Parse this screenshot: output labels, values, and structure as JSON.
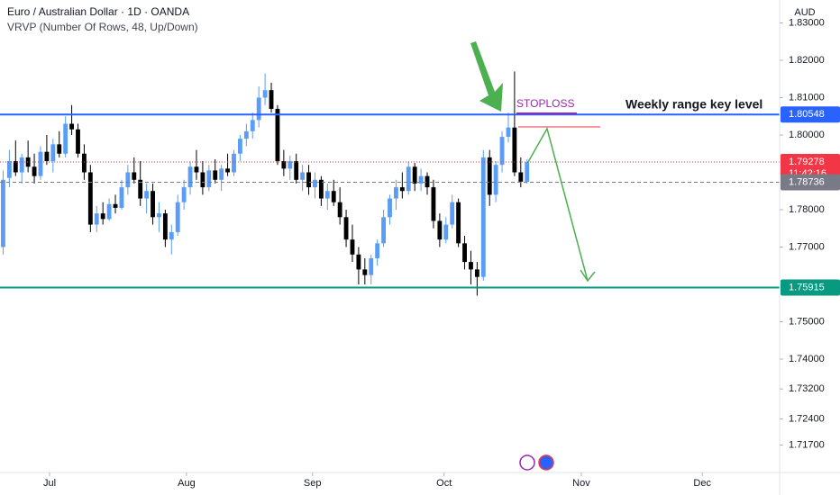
{
  "chart_data": {
    "type": "candlestick",
    "title": "Euro / Australian Dollar · 1D · OANDA",
    "subtitle": "VRVP (Number Of Rows, 48, Up/Down)",
    "currency": "AUD",
    "up_color": "#5b9cf6",
    "down_color": "#000000",
    "ylim": [
      1.70964,
      1.83614
    ],
    "yticks": [
      {
        "value": 1.83,
        "label": "1.83000"
      },
      {
        "value": 1.82,
        "label": "1.82000"
      },
      {
        "value": 1.81,
        "label": "1.81000"
      },
      {
        "value": 1.8,
        "label": "1.80000"
      },
      {
        "value": 1.78,
        "label": "1.78000"
      },
      {
        "value": 1.77,
        "label": "1.77000"
      },
      {
        "value": 1.75,
        "label": "1.75000"
      },
      {
        "value": 1.74,
        "label": "1.74000"
      },
      {
        "value": 1.732,
        "label": "1.73200"
      },
      {
        "value": 1.724,
        "label": "1.72400"
      },
      {
        "value": 1.717,
        "label": "1.71700"
      }
    ],
    "xlim": [
      -0.5,
      124.5
    ],
    "xticks": [
      {
        "value": 7.45,
        "label": "Jul"
      },
      {
        "value": 29.4,
        "label": "Aug"
      },
      {
        "value": 49.6,
        "label": "Sep"
      },
      {
        "value": 70.7,
        "label": "Oct"
      },
      {
        "value": 92.7,
        "label": "Nov"
      },
      {
        "value": 112.1,
        "label": "Dec"
      }
    ],
    "grid": false,
    "candles": [
      [
        1.77,
        1.7905,
        1.768,
        1.788
      ],
      [
        1.7885,
        1.796,
        1.786,
        1.793
      ],
      [
        1.793,
        1.7985,
        1.789,
        1.79
      ],
      [
        1.79,
        1.795,
        1.787,
        1.794
      ],
      [
        1.794,
        1.7985,
        1.79,
        1.7915
      ],
      [
        1.7915,
        1.795,
        1.787,
        1.789
      ],
      [
        1.789,
        1.797,
        1.788,
        1.7955
      ],
      [
        1.7955,
        1.8,
        1.792,
        1.793
      ],
      [
        1.793,
        1.799,
        1.79,
        1.7975
      ],
      [
        1.7975,
        1.801,
        1.794,
        1.795
      ],
      [
        1.795,
        1.805,
        1.794,
        1.803
      ],
      [
        1.803,
        1.808,
        1.8,
        1.8015
      ],
      [
        1.8015,
        1.803,
        1.794,
        1.795
      ],
      [
        1.795,
        1.7975,
        1.788,
        1.79
      ],
      [
        1.79,
        1.792,
        1.774,
        1.776
      ],
      [
        1.776,
        1.781,
        1.774,
        1.779
      ],
      [
        1.779,
        1.782,
        1.776,
        1.7775
      ],
      [
        1.7775,
        1.783,
        1.777,
        1.7815
      ],
      [
        1.7815,
        1.784,
        1.779,
        1.7805
      ],
      [
        1.7805,
        1.788,
        1.78,
        1.786
      ],
      [
        1.786,
        1.792,
        1.784,
        1.79
      ],
      [
        1.79,
        1.794,
        1.787,
        1.788
      ],
      [
        1.788,
        1.793,
        1.781,
        1.783
      ],
      [
        1.783,
        1.787,
        1.779,
        1.785
      ],
      [
        1.785,
        1.787,
        1.776,
        1.778
      ],
      [
        1.778,
        1.782,
        1.774,
        1.779
      ],
      [
        1.779,
        1.78,
        1.77,
        1.772
      ],
      [
        1.772,
        1.776,
        1.768,
        1.774
      ],
      [
        1.774,
        1.784,
        1.773,
        1.782
      ],
      [
        1.782,
        1.788,
        1.78,
        1.786
      ],
      [
        1.786,
        1.793,
        1.784,
        1.7915
      ],
      [
        1.7915,
        1.796,
        1.788,
        1.79
      ],
      [
        1.79,
        1.793,
        1.784,
        1.786
      ],
      [
        1.786,
        1.792,
        1.785,
        1.7905
      ],
      [
        1.7905,
        1.7935,
        1.787,
        1.788
      ],
      [
        1.788,
        1.792,
        1.785,
        1.791
      ],
      [
        1.791,
        1.795,
        1.789,
        1.79
      ],
      [
        1.79,
        1.796,
        1.789,
        1.795
      ],
      [
        1.795,
        1.8,
        1.793,
        1.799
      ],
      [
        1.799,
        1.803,
        1.797,
        1.801
      ],
      [
        1.801,
        1.806,
        1.799,
        1.804
      ],
      [
        1.804,
        1.813,
        1.802,
        1.81
      ],
      [
        1.81,
        1.8165,
        1.808,
        1.812
      ],
      [
        1.812,
        1.814,
        1.806,
        1.807
      ],
      [
        1.807,
        1.808,
        1.792,
        1.793
      ],
      [
        1.793,
        1.796,
        1.789,
        1.791
      ],
      [
        1.791,
        1.7945,
        1.788,
        1.793
      ],
      [
        1.793,
        1.795,
        1.787,
        1.788
      ],
      [
        1.788,
        1.792,
        1.785,
        1.79
      ],
      [
        1.79,
        1.792,
        1.784,
        1.786
      ],
      [
        1.786,
        1.79,
        1.783,
        1.788
      ],
      [
        1.788,
        1.789,
        1.781,
        1.783
      ],
      [
        1.783,
        1.787,
        1.78,
        1.785
      ],
      [
        1.785,
        1.788,
        1.781,
        1.782
      ],
      [
        1.782,
        1.786,
        1.776,
        1.778
      ],
      [
        1.778,
        1.78,
        1.77,
        1.772
      ],
      [
        1.772,
        1.776,
        1.766,
        1.768
      ],
      [
        1.768,
        1.77,
        1.76,
        1.764
      ],
      [
        1.764,
        1.767,
        1.76,
        1.7625
      ],
      [
        1.7625,
        1.768,
        1.76,
        1.767
      ],
      [
        1.767,
        1.772,
        1.765,
        1.771
      ],
      [
        1.771,
        1.78,
        1.77,
        1.778
      ],
      [
        1.778,
        1.784,
        1.776,
        1.783
      ],
      [
        1.783,
        1.788,
        1.78,
        1.786
      ],
      [
        1.786,
        1.79,
        1.783,
        1.785
      ],
      [
        1.785,
        1.793,
        1.784,
        1.7915
      ],
      [
        1.7915,
        1.7925,
        1.785,
        1.787
      ],
      [
        1.787,
        1.791,
        1.785,
        1.789
      ],
      [
        1.789,
        1.79,
        1.784,
        1.786
      ],
      [
        1.786,
        1.788,
        1.775,
        1.777
      ],
      [
        1.777,
        1.779,
        1.77,
        1.772
      ],
      [
        1.772,
        1.778,
        1.771,
        1.776
      ],
      [
        1.776,
        1.784,
        1.775,
        1.782
      ],
      [
        1.782,
        1.783,
        1.77,
        1.771
      ],
      [
        1.771,
        1.773,
        1.764,
        1.766
      ],
      [
        1.766,
        1.769,
        1.76,
        1.764
      ],
      [
        1.764,
        1.766,
        1.757,
        1.762
      ],
      [
        1.762,
        1.796,
        1.761,
        1.794
      ],
      [
        1.794,
        1.796,
        1.781,
        1.784
      ],
      [
        1.784,
        1.793,
        1.782,
        1.792
      ],
      [
        1.792,
        1.801,
        1.79,
        1.7995
      ],
      [
        1.7995,
        1.806,
        1.798,
        1.802
      ],
      [
        1.802,
        1.817,
        1.789,
        1.79
      ],
      [
        1.79,
        1.794,
        1.786,
        1.7875
      ],
      [
        1.7875,
        1.7935,
        1.787,
        1.79278
      ]
    ],
    "levels": [
      {
        "value": 1.80548,
        "color": "#2962ff",
        "style": "solid"
      },
      {
        "value": 1.75915,
        "color": "#089981",
        "style": "solid"
      },
      {
        "value": 1.79278,
        "color": "#f23645",
        "style": "dotted",
        "countdown": "11:42:16"
      },
      {
        "value": 1.78736,
        "color": "#787b86",
        "style": "dashed"
      }
    ],
    "annotations": [
      "STOPLOSS",
      "Weekly range key level"
    ]
  }
}
